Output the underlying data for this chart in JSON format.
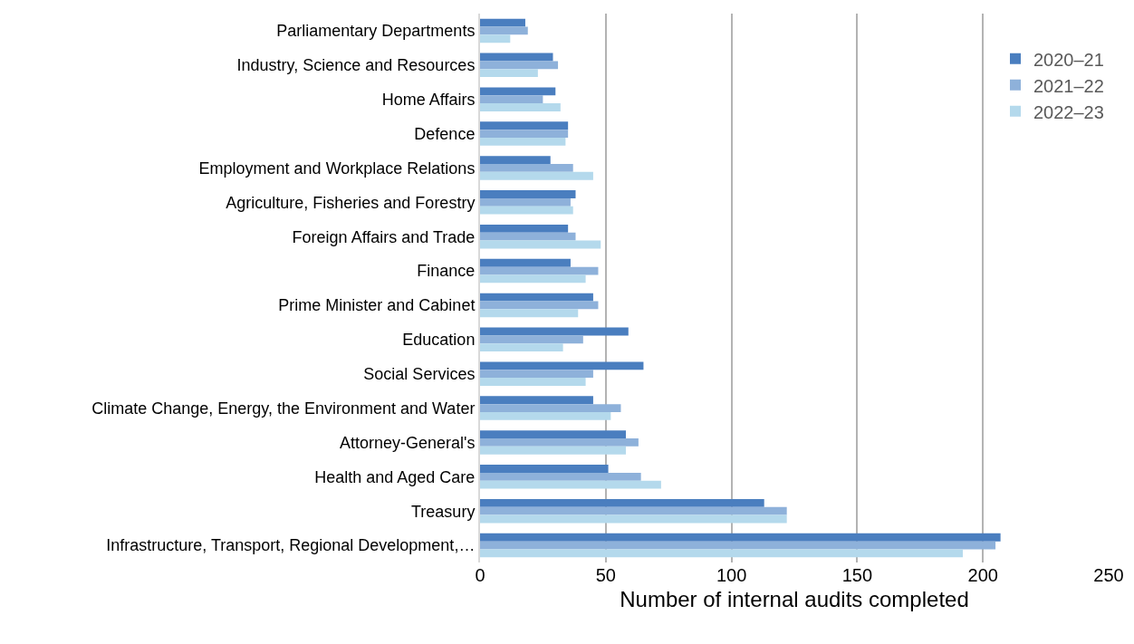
{
  "chart_data": {
    "type": "bar",
    "orientation": "horizontal",
    "xlabel": "Number of internal audits completed",
    "categories": [
      "Parliamentary Departments",
      "Industry, Science and Resources",
      "Home Affairs",
      "Defence",
      "Employment and Workplace Relations",
      "Agriculture, Fisheries and Forestry",
      "Foreign Affairs and Trade",
      "Finance",
      "Prime Minister and Cabinet",
      "Education",
      "Social Services",
      "Climate Change, Energy, the Environment and Water",
      "Attorney-General's",
      "Health and Aged Care",
      "Treasury",
      "Infrastructure, Transport, Regional Development,…"
    ],
    "series": [
      {
        "name": "2020–21",
        "color": "#4a7ebf",
        "values": [
          18,
          29,
          30,
          35,
          28,
          38,
          35,
          36,
          45,
          59,
          65,
          45,
          58,
          51,
          113,
          207
        ]
      },
      {
        "name": "2021–22",
        "color": "#8eb1da",
        "values": [
          19,
          31,
          25,
          35,
          37,
          36,
          38,
          47,
          47,
          41,
          45,
          56,
          63,
          64,
          122,
          205
        ]
      },
      {
        "name": "2022–23",
        "color": "#b4d9ec",
        "values": [
          12,
          23,
          32,
          34,
          45,
          37,
          48,
          42,
          39,
          33,
          42,
          52,
          58,
          72,
          122,
          192
        ]
      }
    ],
    "xlim": [
      0,
      250
    ],
    "xticks": [
      0,
      50,
      100,
      150,
      200,
      250
    ],
    "grid": "x",
    "legend": "top right"
  }
}
